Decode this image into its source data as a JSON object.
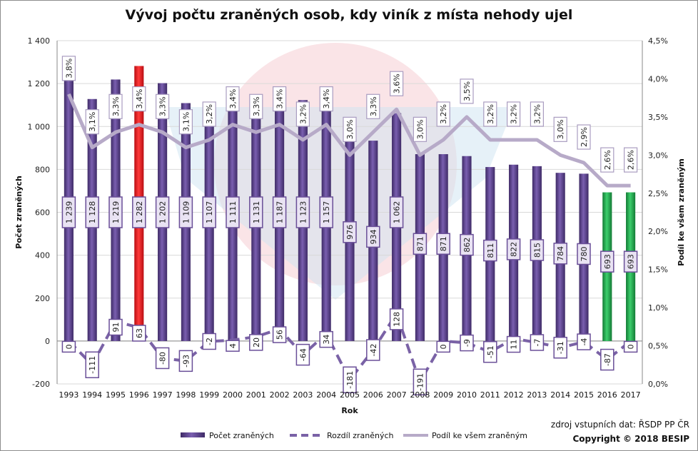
{
  "chart_data": {
    "type": "bar",
    "title": "Vývoj počtu zraněných osob, kdy viník z místa nehody ujel",
    "xlabel": "Rok",
    "ylabel": "Počet zraněných",
    "y2label": "Podíl ke všem zraněným",
    "ylim": [
      -200,
      1400
    ],
    "y2lim": [
      0,
      4.5
    ],
    "yticks": [
      "-200",
      "0",
      "200",
      "400",
      "600",
      "800",
      "1 000",
      "1 200",
      "1 400"
    ],
    "y2ticks": [
      "0,0%",
      "0,5%",
      "1,0%",
      "1,5%",
      "2,0%",
      "2,5%",
      "3,0%",
      "3,5%",
      "4,0%",
      "4,5%"
    ],
    "categories": [
      "1993",
      "1994",
      "1995",
      "1996",
      "1997",
      "1998",
      "1999",
      "2000",
      "2001",
      "2002",
      "2003",
      "2004",
      "2005",
      "2006",
      "2007",
      "2008",
      "2009",
      "2010",
      "2011",
      "2012",
      "2013",
      "2014",
      "2015",
      "2016",
      "2017"
    ],
    "series": [
      {
        "name": "Počet zraněných",
        "kind": "bar",
        "values": [
          1239,
          1128,
          1219,
          1282,
          1202,
          1109,
          1107,
          1111,
          1131,
          1187,
          1123,
          1157,
          976,
          934,
          1062,
          871,
          871,
          862,
          811,
          822,
          815,
          784,
          780,
          693,
          693
        ],
        "labels": [
          "1 239",
          "1 128",
          "1 219",
          "1 282",
          "1 202",
          "1 109",
          "1 107",
          "1 111",
          "1 131",
          "1 187",
          "1 123",
          "1 157",
          "976",
          "934",
          "1 062",
          "871",
          "871",
          "862",
          "811",
          "822",
          "815",
          "784",
          "780",
          "693",
          "693"
        ]
      },
      {
        "name": "Rozdíl zraněných",
        "kind": "dashed-line",
        "values": [
          0,
          -111,
          91,
          63,
          -80,
          -93,
          -2,
          4,
          20,
          56,
          -64,
          34,
          -181,
          -42,
          128,
          -191,
          0,
          -9,
          -51,
          11,
          -7,
          -31,
          -4,
          -87,
          0
        ],
        "labels": [
          "0",
          "-111",
          "91",
          "63",
          "-80",
          "-93",
          "-2",
          "4",
          "20",
          "56",
          "-64",
          "34",
          "-181",
          "-42",
          "128",
          "-191",
          "0",
          "-9",
          "-51",
          "11",
          "-7",
          "-31",
          "-4",
          "-87",
          "0"
        ]
      },
      {
        "name": "Podíl ke všem zraněným",
        "kind": "line",
        "axis": "secondary",
        "values": [
          3.8,
          3.1,
          3.3,
          3.4,
          3.3,
          3.1,
          3.2,
          3.4,
          3.3,
          3.4,
          3.2,
          3.4,
          3.0,
          3.3,
          3.6,
          3.0,
          3.2,
          3.5,
          3.2,
          3.2,
          3.2,
          3.0,
          2.9,
          2.6,
          2.6
        ],
        "labels": [
          "3,8%",
          "3,1%",
          "3,3%",
          "3,4%",
          "3,3%",
          "3,1%",
          "3,2%",
          "3,4%",
          "3,3%",
          "3,4%",
          "3,2%",
          "3,4%",
          "3,0%",
          "3,3%",
          "3,6%",
          "3,0%",
          "3,2%",
          "3,5%",
          "3,2%",
          "3,2%",
          "3,2%",
          "3,0%",
          "2,9%",
          "2,6%",
          "2,6%"
        ]
      }
    ],
    "highlight": {
      "max_category": "1996",
      "max_color": "#e8141c",
      "recent_categories": [
        "2016",
        "2017"
      ],
      "recent_color": "#1ea34a"
    },
    "bar_color": "#5b3f8c",
    "diff_color": "#7a62a6",
    "share_color": "#b7aac8",
    "legend_position": "bottom",
    "grid": true
  },
  "footer": {
    "source": "zdroj vstupních dat: ŘSDP PP ČR",
    "copyright": "Copyright © 2018 BESIP"
  }
}
